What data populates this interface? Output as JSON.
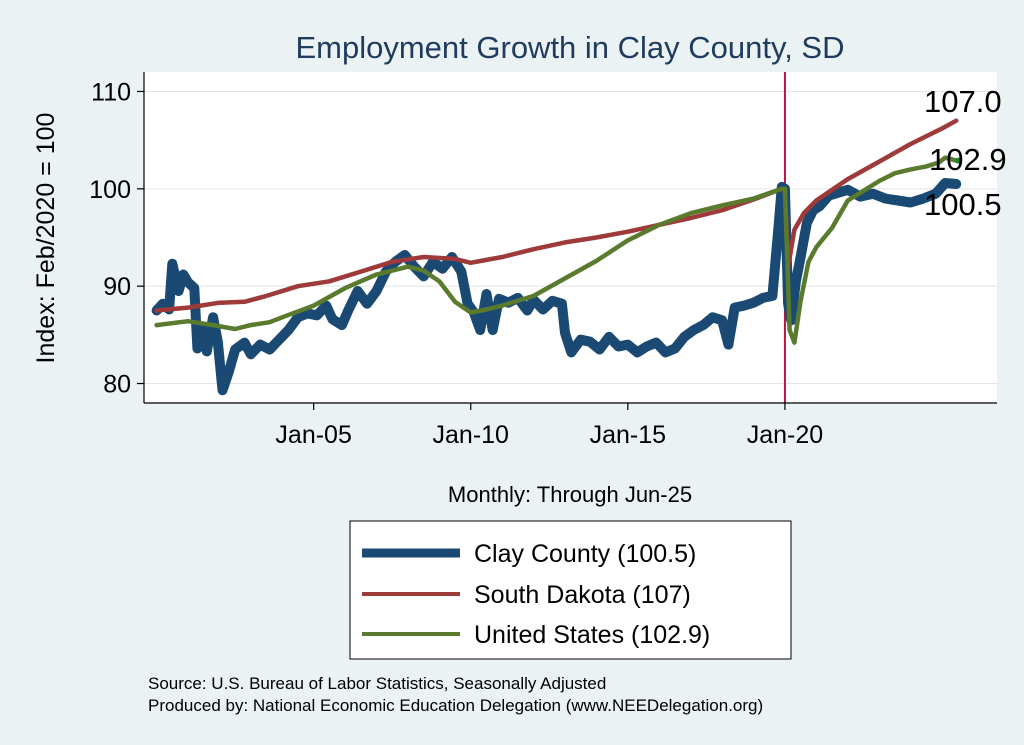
{
  "chart_data": {
    "type": "line",
    "title": "Employment Growth in Clay  County, SD",
    "ylabel": "Index: Feb/2020 = 100",
    "xlabel": "Monthly: Through Jun-25",
    "ylim": [
      78,
      112
    ],
    "xlim": [
      1999.6,
      2026.75
    ],
    "yticks": [
      80,
      90,
      100,
      110
    ],
    "xticks": [
      {
        "x": 2005.0,
        "label": "Jan-05"
      },
      {
        "x": 2010.0,
        "label": "Jan-10"
      },
      {
        "x": 2015.0,
        "label": "Jan-15"
      },
      {
        "x": 2020.0,
        "label": "Jan-20"
      }
    ],
    "vline": {
      "x": 2020.0,
      "color": "#b5173f"
    },
    "grid": true,
    "series": [
      {
        "name": "Clay  County (100.5)",
        "color": "#1a4a73",
        "end_label": "100.5",
        "points": [
          [
            2000.0,
            87.5
          ],
          [
            2000.2,
            88.2
          ],
          [
            2000.4,
            87.6
          ],
          [
            2000.5,
            92.3
          ],
          [
            2000.7,
            89.5
          ],
          [
            2000.85,
            91.2
          ],
          [
            2001.0,
            90.4
          ],
          [
            2001.2,
            89.8
          ],
          [
            2001.3,
            83.6
          ],
          [
            2001.5,
            85.6
          ],
          [
            2001.6,
            83.3
          ],
          [
            2001.8,
            86.8
          ],
          [
            2001.95,
            84.3
          ],
          [
            2002.1,
            79.3
          ],
          [
            2002.3,
            81.2
          ],
          [
            2002.5,
            83.5
          ],
          [
            2002.8,
            84.2
          ],
          [
            2003.0,
            83.0
          ],
          [
            2003.3,
            84.0
          ],
          [
            2003.6,
            83.5
          ],
          [
            2003.9,
            84.5
          ],
          [
            2004.2,
            85.5
          ],
          [
            2004.5,
            86.8
          ],
          [
            2004.8,
            87.2
          ],
          [
            2005.1,
            87.0
          ],
          [
            2005.4,
            88.0
          ],
          [
            2005.6,
            86.6
          ],
          [
            2005.9,
            86.0
          ],
          [
            2006.1,
            87.5
          ],
          [
            2006.4,
            89.5
          ],
          [
            2006.7,
            88.2
          ],
          [
            2007.0,
            89.5
          ],
          [
            2007.3,
            91.5
          ],
          [
            2007.6,
            92.5
          ],
          [
            2007.9,
            93.2
          ],
          [
            2008.2,
            92.0
          ],
          [
            2008.5,
            91.0
          ],
          [
            2008.8,
            92.5
          ],
          [
            2009.1,
            91.8
          ],
          [
            2009.4,
            93.0
          ],
          [
            2009.7,
            91.5
          ],
          [
            2009.9,
            88.2
          ],
          [
            2010.1,
            87.3
          ],
          [
            2010.3,
            85.5
          ],
          [
            2010.5,
            89.2
          ],
          [
            2010.7,
            85.5
          ],
          [
            2010.9,
            88.7
          ],
          [
            2011.2,
            88.3
          ],
          [
            2011.5,
            88.8
          ],
          [
            2011.8,
            87.5
          ],
          [
            2012.0,
            88.6
          ],
          [
            2012.3,
            87.6
          ],
          [
            2012.6,
            88.5
          ],
          [
            2012.9,
            88.2
          ],
          [
            2013.0,
            85.2
          ],
          [
            2013.2,
            83.2
          ],
          [
            2013.5,
            84.5
          ],
          [
            2013.8,
            84.3
          ],
          [
            2014.1,
            83.5
          ],
          [
            2014.4,
            84.8
          ],
          [
            2014.7,
            83.8
          ],
          [
            2015.0,
            84.0
          ],
          [
            2015.3,
            83.2
          ],
          [
            2015.6,
            83.8
          ],
          [
            2015.9,
            84.2
          ],
          [
            2016.2,
            83.2
          ],
          [
            2016.5,
            83.6
          ],
          [
            2016.8,
            84.8
          ],
          [
            2017.1,
            85.5
          ],
          [
            2017.4,
            86.0
          ],
          [
            2017.7,
            86.8
          ],
          [
            2018.0,
            86.5
          ],
          [
            2018.2,
            84.0
          ],
          [
            2018.4,
            87.8
          ],
          [
            2018.7,
            88.0
          ],
          [
            2019.0,
            88.3
          ],
          [
            2019.3,
            88.8
          ],
          [
            2019.6,
            89.0
          ],
          [
            2019.8,
            96.2
          ],
          [
            2019.9,
            100.2
          ],
          [
            2020.0,
            100.0
          ],
          [
            2020.1,
            88.2
          ],
          [
            2020.2,
            86.5
          ],
          [
            2020.35,
            90.5
          ],
          [
            2020.5,
            93.0
          ],
          [
            2020.7,
            96.5
          ],
          [
            2020.9,
            97.8
          ],
          [
            2021.1,
            98.2
          ],
          [
            2021.4,
            99.3
          ],
          [
            2021.7,
            99.6
          ],
          [
            2022.0,
            99.9
          ],
          [
            2022.4,
            99.2
          ],
          [
            2022.8,
            99.5
          ],
          [
            2023.2,
            99.0
          ],
          [
            2023.6,
            98.8
          ],
          [
            2024.0,
            98.6
          ],
          [
            2024.4,
            99.0
          ],
          [
            2024.8,
            99.5
          ],
          [
            2025.1,
            100.6
          ],
          [
            2025.45,
            100.5
          ]
        ]
      },
      {
        "name": "South Dakota (107)",
        "color": "#9e3a3a",
        "end_label": "107.0",
        "points": [
          [
            2000.0,
            87.5
          ],
          [
            2001.0,
            87.8
          ],
          [
            2002.0,
            88.3
          ],
          [
            2002.8,
            88.4
          ],
          [
            2003.5,
            89.0
          ],
          [
            2004.5,
            90.0
          ],
          [
            2005.5,
            90.5
          ],
          [
            2006.5,
            91.5
          ],
          [
            2007.5,
            92.5
          ],
          [
            2008.5,
            93.0
          ],
          [
            2009.5,
            92.8
          ],
          [
            2010.0,
            92.4
          ],
          [
            2010.5,
            92.7
          ],
          [
            2011.0,
            93.0
          ],
          [
            2012.0,
            93.8
          ],
          [
            2013.0,
            94.5
          ],
          [
            2014.0,
            95.0
          ],
          [
            2015.0,
            95.6
          ],
          [
            2016.0,
            96.3
          ],
          [
            2017.0,
            97.0
          ],
          [
            2018.0,
            97.8
          ],
          [
            2019.0,
            98.9
          ],
          [
            2019.9,
            100.0
          ],
          [
            2020.0,
            100.0
          ],
          [
            2020.1,
            92.0
          ],
          [
            2020.3,
            95.8
          ],
          [
            2020.6,
            97.5
          ],
          [
            2021.0,
            98.8
          ],
          [
            2022.0,
            101.0
          ],
          [
            2023.0,
            102.8
          ],
          [
            2024.0,
            104.6
          ],
          [
            2025.0,
            106.2
          ],
          [
            2025.45,
            107.0
          ]
        ]
      },
      {
        "name": "United States (102.9)",
        "color": "#5a7a2e",
        "end_label": "102.9",
        "points": [
          [
            2000.0,
            86.0
          ],
          [
            2001.0,
            86.4
          ],
          [
            2001.8,
            86.0
          ],
          [
            2002.5,
            85.6
          ],
          [
            2003.0,
            86.0
          ],
          [
            2003.6,
            86.3
          ],
          [
            2004.0,
            86.8
          ],
          [
            2005.0,
            88.0
          ],
          [
            2006.0,
            89.8
          ],
          [
            2007.0,
            91.2
          ],
          [
            2008.0,
            92.0
          ],
          [
            2008.5,
            91.6
          ],
          [
            2009.0,
            90.5
          ],
          [
            2009.5,
            88.4
          ],
          [
            2010.0,
            87.3
          ],
          [
            2010.5,
            87.6
          ],
          [
            2011.0,
            88.0
          ],
          [
            2012.0,
            89.0
          ],
          [
            2013.0,
            90.8
          ],
          [
            2014.0,
            92.6
          ],
          [
            2015.0,
            94.7
          ],
          [
            2016.0,
            96.3
          ],
          [
            2017.0,
            97.5
          ],
          [
            2018.0,
            98.3
          ],
          [
            2019.0,
            99.0
          ],
          [
            2019.9,
            100.0
          ],
          [
            2020.0,
            100.0
          ],
          [
            2020.15,
            85.5
          ],
          [
            2020.3,
            84.2
          ],
          [
            2020.5,
            88.5
          ],
          [
            2020.75,
            92.5
          ],
          [
            2021.0,
            94.0
          ],
          [
            2021.5,
            96.0
          ],
          [
            2022.0,
            98.8
          ],
          [
            2022.5,
            99.8
          ],
          [
            2023.0,
            100.8
          ],
          [
            2023.5,
            101.6
          ],
          [
            2024.0,
            102.0
          ],
          [
            2024.5,
            102.3
          ],
          [
            2024.9,
            102.7
          ],
          [
            2025.1,
            103.2
          ],
          [
            2025.45,
            102.9
          ]
        ]
      }
    ]
  },
  "legend": [
    {
      "label": "Clay  County (100.5)",
      "color": "#1a4a73"
    },
    {
      "label": "South Dakota (107)",
      "color": "#9e3a3a"
    },
    {
      "label": "United States (102.9)",
      "color": "#5a7a2e"
    }
  ],
  "source": {
    "line1": "Source: U.S. Bureau of Labor Statistics, Seasonally Adjusted",
    "line2": "Produced by: National Economic Education Delegation (www.NEEDelegation.org)"
  }
}
